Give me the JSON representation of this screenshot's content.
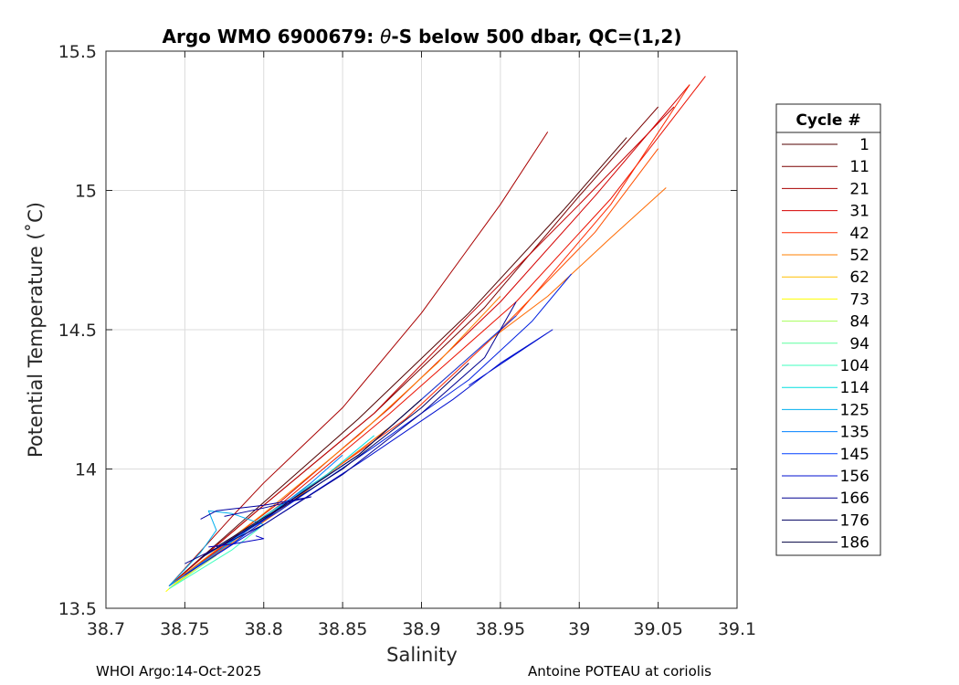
{
  "chart_data": {
    "type": "line",
    "title_prefix": "Argo WMO 6900679: ",
    "title_theta": "θ",
    "title_suffix": "-S below 500 dbar,  QC=(1,2)",
    "xlabel": "Salinity",
    "ylabel": "Potential Temperature (˚C)",
    "xlim": [
      38.7,
      39.1
    ],
    "ylim": [
      13.5,
      15.5
    ],
    "xticks": [
      "38.7",
      "38.75",
      "38.8",
      "38.85",
      "38.9",
      "38.95",
      "39",
      "39.05",
      "39.1"
    ],
    "yticks": [
      "13.5",
      "14",
      "14.5",
      "15",
      "15.5"
    ],
    "grid": true,
    "legend": {
      "title": "Cycle #",
      "placement": "outside-right",
      "entries": [
        {
          "label": "1",
          "color": "#500000"
        },
        {
          "label": "11",
          "color": "#7a0000"
        },
        {
          "label": "21",
          "color": "#a80000"
        },
        {
          "label": "31",
          "color": "#d40000"
        },
        {
          "label": "42",
          "color": "#ff2a00"
        },
        {
          "label": "52",
          "color": "#ff7f00"
        },
        {
          "label": "62",
          "color": "#ffbf00"
        },
        {
          "label": "73",
          "color": "#ffff00"
        },
        {
          "label": "84",
          "color": "#a6ff59"
        },
        {
          "label": "94",
          "color": "#5fff9f"
        },
        {
          "label": "104",
          "color": "#3fffbf"
        },
        {
          "label": "114",
          "color": "#00dfdf"
        },
        {
          "label": "125",
          "color": "#00afef"
        },
        {
          "label": "135",
          "color": "#0080ff"
        },
        {
          "label": "145",
          "color": "#0040ff"
        },
        {
          "label": "156",
          "color": "#0010d0"
        },
        {
          "label": "166",
          "color": "#000090"
        },
        {
          "label": "176",
          "color": "#000060"
        },
        {
          "label": "186",
          "color": "#000040"
        }
      ]
    },
    "series": [
      {
        "color": "#500000",
        "x": [
          38.74,
          38.8,
          38.86,
          38.93,
          38.99,
          39.03
        ],
        "y": [
          13.58,
          13.88,
          14.18,
          14.56,
          14.93,
          15.19
        ]
      },
      {
        "color": "#7a0000",
        "x": [
          38.74,
          38.8,
          38.87,
          38.94,
          39.0,
          39.05
        ],
        "y": [
          13.58,
          13.87,
          14.2,
          14.58,
          14.98,
          15.3
        ]
      },
      {
        "color": "#a80000",
        "x": [
          38.74,
          38.78,
          38.8,
          38.85,
          38.9,
          38.95,
          38.98
        ],
        "y": [
          13.58,
          13.83,
          13.95,
          14.22,
          14.56,
          14.95,
          15.21
        ]
      },
      {
        "color": "#c00000",
        "x": [
          38.74,
          38.8,
          38.87,
          38.93,
          39.0,
          39.06
        ],
        "y": [
          13.58,
          13.87,
          14.2,
          14.55,
          14.95,
          15.3
        ]
      },
      {
        "color": "#d40000",
        "x": [
          38.74,
          38.81,
          38.88,
          38.95,
          39.01,
          39.07
        ],
        "y": [
          13.58,
          13.88,
          14.22,
          14.6,
          14.98,
          15.38
        ]
      },
      {
        "color": "#ea1000",
        "x": [
          38.74,
          38.81,
          38.88,
          38.96,
          39.02,
          39.08
        ],
        "y": [
          13.58,
          13.87,
          14.2,
          14.6,
          14.97,
          15.41
        ]
      },
      {
        "color": "#ff2a00",
        "x": [
          38.74,
          38.81,
          38.89,
          38.96,
          39.02,
          39.07
        ],
        "y": [
          13.58,
          13.86,
          14.18,
          14.55,
          14.95,
          15.38
        ]
      },
      {
        "color": "#ff5000",
        "x": [
          38.74,
          38.81,
          38.88,
          38.95,
          39.01,
          39.05
        ],
        "y": [
          13.58,
          13.85,
          14.15,
          14.5,
          14.85,
          15.15
        ]
      },
      {
        "color": "#ff6a00",
        "x": [
          38.74,
          38.81,
          38.88,
          38.94,
          38.98,
          39.02,
          39.055
        ],
        "y": [
          13.58,
          13.85,
          14.15,
          14.45,
          14.62,
          14.83,
          15.01
        ]
      },
      {
        "color": "#ff7f00",
        "x": [
          38.74,
          38.8,
          38.86,
          38.91,
          38.95
        ],
        "y": [
          13.58,
          13.84,
          14.12,
          14.38,
          14.62
        ]
      },
      {
        "color": "#ffbf00",
        "x": [
          38.74,
          38.77,
          38.8,
          38.83
        ],
        "y": [
          13.57,
          13.7,
          13.82,
          13.95
        ]
      },
      {
        "color": "#ffff00",
        "x": [
          38.738,
          38.75,
          38.76
        ],
        "y": [
          13.56,
          13.62,
          13.66
        ]
      },
      {
        "color": "#a6ff59",
        "x": [
          38.74,
          38.755,
          38.77
        ],
        "y": [
          13.57,
          13.63,
          13.69
        ]
      },
      {
        "color": "#3fffbf",
        "x": [
          38.74,
          38.76,
          38.78,
          38.8
        ],
        "y": [
          13.57,
          13.64,
          13.71,
          13.8
        ]
      },
      {
        "color": "#00dfdf",
        "x": [
          38.74,
          38.77,
          38.8,
          38.84,
          38.87
        ],
        "y": [
          13.58,
          13.7,
          13.83,
          13.98,
          14.12
        ]
      },
      {
        "color": "#00afef",
        "x": [
          38.74,
          38.76,
          38.77,
          38.765,
          38.78,
          38.8
        ],
        "y": [
          13.58,
          13.7,
          13.78,
          13.85,
          13.84,
          13.8
        ]
      },
      {
        "color": "#0080ff",
        "x": [
          38.74,
          38.77,
          38.8,
          38.83,
          38.85
        ],
        "y": [
          13.58,
          13.7,
          13.82,
          13.95,
          14.05
        ]
      },
      {
        "color": "#0040ff",
        "x": [
          38.745,
          38.78,
          38.82,
          38.86,
          38.9,
          38.94,
          38.96
        ],
        "y": [
          13.6,
          13.73,
          13.9,
          14.05,
          14.25,
          14.45,
          14.55
        ]
      },
      {
        "color": "#0010d0",
        "x": [
          38.75,
          38.8,
          38.86,
          38.92,
          38.95,
          38.983,
          38.93
        ],
        "y": [
          13.62,
          13.8,
          14.02,
          14.25,
          14.38,
          14.5,
          14.3
        ]
      },
      {
        "color": "#0020e0",
        "x": [
          38.76,
          38.81,
          38.87,
          38.93,
          38.97,
          38.995
        ],
        "y": [
          13.68,
          13.85,
          14.08,
          14.32,
          14.53,
          14.7
        ]
      },
      {
        "color": "#000090",
        "x": [
          38.75,
          38.8,
          38.85,
          38.9,
          38.94,
          38.96
        ],
        "y": [
          13.66,
          13.8,
          13.98,
          14.2,
          14.4,
          14.6
        ]
      },
      {
        "color": "#000060",
        "x": [
          38.76,
          38.8,
          38.85,
          38.9,
          38.93
        ],
        "y": [
          13.68,
          13.82,
          14.0,
          14.22,
          14.38
        ]
      },
      {
        "color": "#000040",
        "x": [
          38.77,
          38.81,
          38.86,
          38.9
        ],
        "y": [
          13.72,
          13.86,
          14.05,
          14.25
        ]
      },
      {
        "color": "#0000c0",
        "x": [
          38.765,
          38.78,
          38.8,
          38.795
        ],
        "y": [
          13.72,
          13.73,
          13.75,
          13.76
        ]
      },
      {
        "color": "#0000a0",
        "x": [
          38.76,
          38.77,
          38.8,
          38.83,
          38.8,
          38.775
        ],
        "y": [
          13.82,
          13.85,
          13.87,
          13.9,
          13.86,
          13.83
        ]
      }
    ]
  },
  "footer": {
    "left": "WHOI Argo:14-Oct-2025",
    "right": "Antoine POTEAU at coriolis"
  }
}
